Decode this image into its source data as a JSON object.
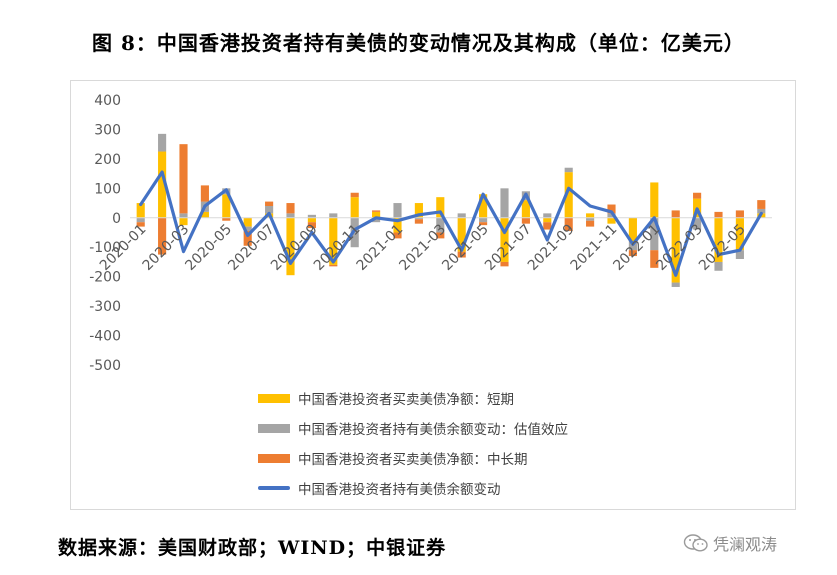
{
  "figure": {
    "title": "图 8：中国香港投资者持有美债的变动情况及其构成（单位：亿美元）",
    "source": "数据来源：美国财政部；WIND；中银证券",
    "watermark": "凭澜观涛"
  },
  "colors": {
    "short": "#FFC000",
    "valuation": "#A5A5A5",
    "long": "#ED7D31",
    "total": "#4472C4",
    "axis_text": "#595959",
    "grid": "#D9D9D9"
  },
  "chart_data": {
    "type": "bar+line",
    "stacked": true,
    "ylim": [
      -500,
      400
    ],
    "yticks": [
      400,
      300,
      200,
      100,
      0,
      -100,
      -200,
      -300,
      -400,
      -500
    ],
    "grid": false,
    "legend_position": "bottom",
    "categories": [
      "2020-01",
      "2020-02",
      "2020-03",
      "2020-04",
      "2020-05",
      "2020-06",
      "2020-07",
      "2020-08",
      "2020-09",
      "2020-10",
      "2020-11",
      "2020-12",
      "2021-01",
      "2021-02",
      "2021-03",
      "2021-04",
      "2021-05",
      "2021-06",
      "2021-07",
      "2021-08",
      "2021-09",
      "2021-10",
      "2021-11",
      "2021-12",
      "2022-01",
      "2022-02",
      "2022-03",
      "2022-04",
      "2022-05",
      "2022-06"
    ],
    "tick_labels": [
      "2020-01",
      "",
      "2020-03",
      "",
      "2020-05",
      "",
      "2020-07",
      "",
      "2020-09",
      "",
      "2020-11",
      "",
      "2021-01",
      "",
      "2021-03",
      "",
      "2021-05",
      "",
      "2021-07",
      "",
      "2021-09",
      "",
      "2021-11",
      "",
      "2022-01",
      "",
      "2022-03",
      "",
      "2022-05",
      ""
    ],
    "series": [
      {
        "name": "中国香港投资者买卖美债净额：短期",
        "kind": "bar",
        "color_key": "short",
        "values": [
          50,
          225,
          -25,
          20,
          80,
          -30,
          15,
          -195,
          -15,
          -160,
          70,
          20,
          -50,
          50,
          70,
          -115,
          80,
          -150,
          60,
          -15,
          155,
          15,
          -20,
          -80,
          120,
          -220,
          65,
          -150,
          -110,
          15
        ]
      },
      {
        "name": "中国香港投资者持有美债余额变动：估值效应",
        "kind": "bar",
        "color_key": "valuation",
        "values": [
          -15,
          60,
          15,
          35,
          20,
          -15,
          25,
          15,
          10,
          15,
          -100,
          -15,
          50,
          -5,
          -50,
          15,
          -15,
          100,
          30,
          15,
          15,
          -10,
          15,
          -30,
          -110,
          -15,
          -40,
          -30,
          -30,
          15
        ]
      },
      {
        "name": "中国香港投资者买卖美债净额：中长期",
        "kind": "bar",
        "color_key": "long",
        "values": [
          -15,
          -125,
          235,
          55,
          -10,
          -50,
          15,
          35,
          -20,
          -5,
          15,
          5,
          -20,
          -15,
          -20,
          -20,
          -10,
          -15,
          -20,
          -25,
          -45,
          -20,
          30,
          -20,
          -60,
          25,
          20,
          20,
          25,
          30
        ]
      },
      {
        "name": "中国香港投资者持有美债余额变动",
        "kind": "line",
        "color_key": "total",
        "values": [
          45,
          155,
          -115,
          40,
          95,
          -60,
          15,
          -155,
          -50,
          -150,
          -40,
          0,
          -10,
          10,
          20,
          -110,
          80,
          -50,
          80,
          -75,
          100,
          40,
          20,
          -90,
          0,
          -195,
          30,
          -125,
          -110,
          15
        ]
      }
    ]
  }
}
